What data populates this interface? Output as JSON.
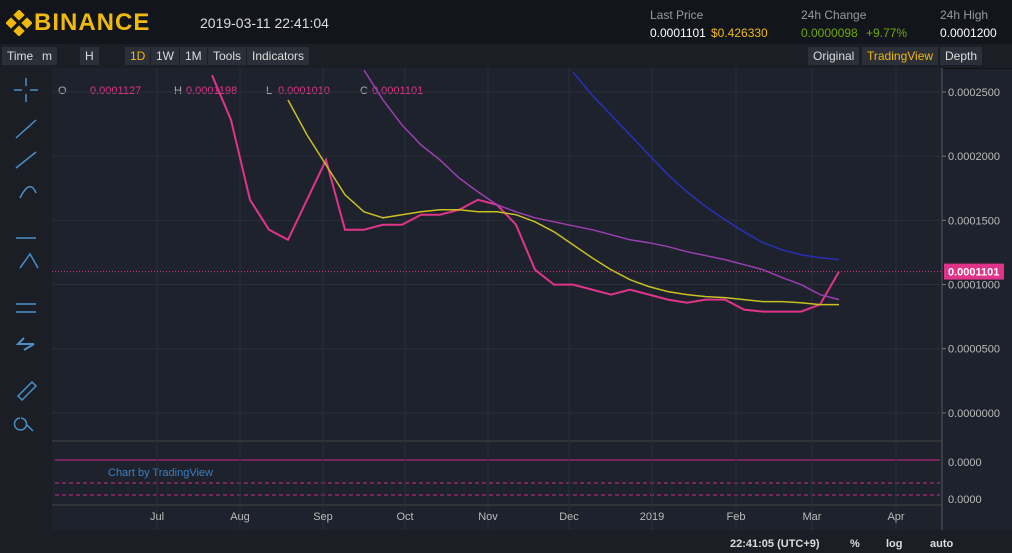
{
  "header": {
    "logo": "BINANCE",
    "datetime": "2019-03-11 22:41:04",
    "last_price_label": "Last Price",
    "last_price": "0.0001101",
    "last_price_usd": "$0.426330",
    "change_label": "24h Change",
    "change": "0.0000098",
    "change_pct": "+9.77%",
    "high_label": "24h High",
    "high": "0.0001200"
  },
  "toolbar": {
    "left": [
      "Time",
      "m",
      "H",
      "1D",
      "1W",
      "1M",
      "Tools",
      "Indicators"
    ],
    "right": [
      "Original",
      "TradingView",
      "Depth"
    ]
  },
  "legend": {
    "o_label": "O",
    "o": "0.0001127",
    "h_label": "H",
    "h": "0.0001198",
    "l_label": "L",
    "l": "0.0001010",
    "c_label": "C",
    "c": "0.0001101"
  },
  "chart_data": {
    "type": "line",
    "x_labels": [
      "Jul",
      "Aug",
      "Sep",
      "Oct",
      "Nov",
      "Dec",
      "2019",
      "Feb",
      "Mar",
      "Apr"
    ],
    "series": [
      {
        "color": "#e0348a",
        "values": [
          0.0002632,
          0.0002282,
          0.000166,
          0.0001427,
          0.0001349,
          0.000166,
          0.0001971,
          0.0001427,
          0.0001427,
          0.0001466,
          0.0001466,
          0.0001544,
          0.0001544,
          0.0001582,
          0.000166,
          0.0001621,
          0.0001466,
          0.0001116,
          0.0001,
          0.0001,
          9.61e-05,
          9.22e-05,
          9.61e-05,
          9.22e-05,
          8.83e-05,
          8.59e-05,
          8.83e-05,
          8.83e-05,
          8.05e-05,
          7.89e-05,
          7.89e-05,
          7.89e-05,
          8.44e-05,
          0.0001101
        ]
      },
      {
        "color": "#c8c020",
        "values": [
          null,
          null,
          null,
          null,
          0.0002438,
          0.0002166,
          0.0001932,
          0.0001699,
          0.0001567,
          0.000152,
          0.0001544,
          0.0001567,
          0.0001582,
          0.0001582,
          0.0001567,
          0.0001567,
          0.0001544,
          0.0001489,
          0.0001411,
          0.000131,
          0.0001209,
          0.0001116,
          0.0001038,
          9.84e-05,
          9.45e-05,
          9.22e-05,
          9.06e-05,
          8.98e-05,
          8.83e-05,
          8.67e-05,
          8.67e-05,
          8.59e-05,
          8.44e-05,
          8.44e-05
        ]
      },
      {
        "color": "#9a3fb0",
        "values": [
          null,
          null,
          null,
          null,
          null,
          null,
          null,
          null,
          0.0002671,
          0.0002438,
          0.0002243,
          0.0002088,
          0.0001971,
          0.0001831,
          0.0001722,
          0.0001621,
          0.0001567,
          0.000152,
          0.0001489,
          0.0001458,
          0.0001427,
          0.0001388,
          0.0001349,
          0.0001326,
          0.0001295,
          0.0001256,
          0.0001225,
          0.0001194,
          0.0001155,
          0.0001116,
          0.0001054,
          0.0001,
          9.22e-05,
          8.83e-05
        ]
      },
      {
        "color": "#2a2fb8",
        "values": [
          null,
          null,
          null,
          null,
          null,
          null,
          null,
          null,
          null,
          null,
          null,
          null,
          null,
          null,
          null,
          null,
          null,
          null,
          null,
          0.0002656,
          0.0002477,
          0.0002321,
          0.0002166,
          0.000201,
          0.0001855,
          0.0001722,
          0.0001606,
          0.0001505,
          0.0001411,
          0.0001326,
          0.0001271,
          0.0001232,
          0.0001209,
          0.0001194
        ]
      }
    ],
    "ylim": [
      -2.11e-05,
      0.0002687
    ],
    "yticks": [
      {
        "value": 0,
        "label": "0.0000000"
      },
      {
        "value": 5e-05,
        "label": "0.0000500"
      },
      {
        "value": 0.0001,
        "label": "0.0001000"
      },
      {
        "value": 0.00015,
        "label": "0.0001500"
      },
      {
        "value": 0.0002,
        "label": "0.0002000"
      },
      {
        "value": 0.00025,
        "label": "0.0002500"
      }
    ],
    "last_price": {
      "value": 0.0001101,
      "label": "0.0001101"
    },
    "indicator_ticks": [
      "0.0000",
      "0.0000"
    ],
    "watermark": "Chart by TradingView"
  },
  "footer": {
    "time": "22:41:05 (UTC+9)",
    "pct": "%",
    "log": "log",
    "auto": "auto"
  }
}
